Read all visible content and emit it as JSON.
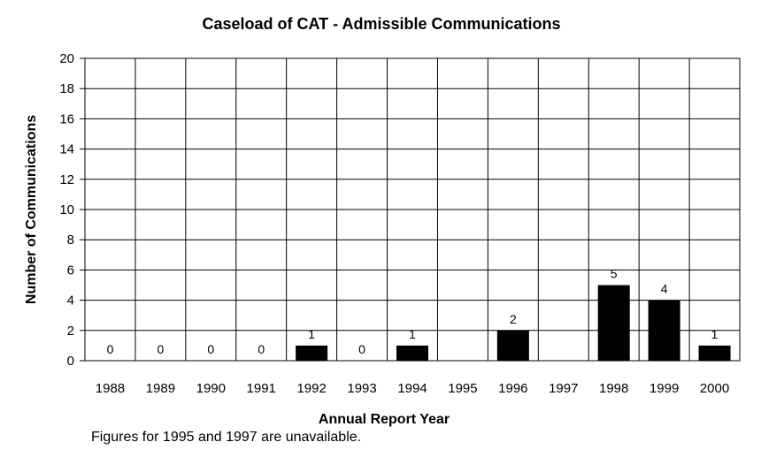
{
  "chart_data": {
    "type": "bar",
    "title": "Caseload of CAT - Admissible Communications",
    "xlabel": "Annual Report Year",
    "ylabel": "Number of Communications",
    "ylim": [
      0,
      20
    ],
    "yticks": [
      0,
      2,
      4,
      6,
      8,
      10,
      12,
      14,
      16,
      18,
      20
    ],
    "grid": true,
    "categories": [
      "1988",
      "1989",
      "1990",
      "1991",
      "1992",
      "1993",
      "1994",
      "1995",
      "1996",
      "1997",
      "1998",
      "1999",
      "2000"
    ],
    "values": [
      0,
      0,
      0,
      0,
      1,
      0,
      1,
      null,
      2,
      null,
      5,
      4,
      1
    ],
    "data_labels": [
      "0",
      "0",
      "0",
      "0",
      "1",
      "0",
      "1",
      "",
      "2",
      "",
      "5",
      "4",
      "1"
    ],
    "bar_color": "#000000"
  },
  "footnote": "Figures for 1995 and 1997 are unavailable."
}
